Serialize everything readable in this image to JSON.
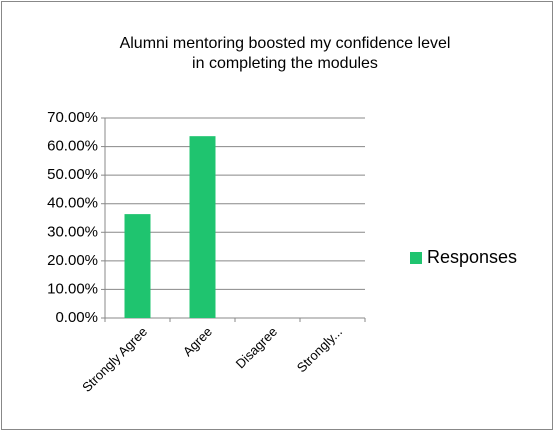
{
  "chart_data": {
    "type": "bar",
    "title": [
      "Alumni  mentoring boosted my confidence level",
      "in completing the modules"
    ],
    "categories": [
      "Strongly Agree",
      "Agree",
      "Disagree",
      "Strongly..."
    ],
    "series": [
      {
        "name": "Responses",
        "color": "#1fc46f",
        "values": [
          36.36,
          63.64,
          0,
          0
        ]
      }
    ],
    "ylim": [
      0,
      70
    ],
    "yticks": [
      {
        "value": 0,
        "label": "0.00%"
      },
      {
        "value": 10,
        "label": "10.00%"
      },
      {
        "value": 20,
        "label": "20.00%"
      },
      {
        "value": 30,
        "label": "30.00%"
      },
      {
        "value": 40,
        "label": "40.00%"
      },
      {
        "value": 50,
        "label": "50.00%"
      },
      {
        "value": 60,
        "label": "60.00%"
      },
      {
        "value": 70,
        "label": "70.00%"
      }
    ],
    "grid": true,
    "legend": "right"
  }
}
